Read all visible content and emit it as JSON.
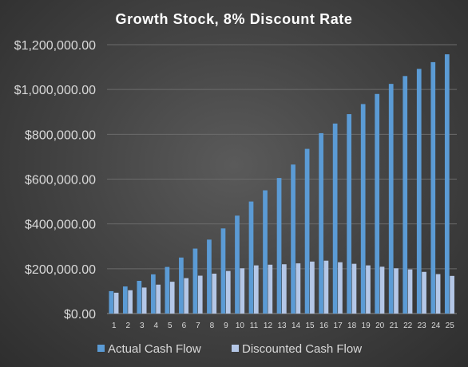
{
  "chart_data": {
    "type": "bar",
    "title": "Growth Stock, 8% Discount Rate",
    "categories": [
      "1",
      "2",
      "3",
      "4",
      "5",
      "6",
      "7",
      "8",
      "9",
      "10",
      "11",
      "12",
      "13",
      "14",
      "15",
      "16",
      "17",
      "18",
      "19",
      "20",
      "21",
      "22",
      "23",
      "24",
      "25"
    ],
    "series": [
      {
        "name": "Actual Cash Flow",
        "color": "#5b9bd5",
        "values": [
          100000,
          121000,
          146000,
          175000,
          208000,
          250000,
          290000,
          330000,
          380000,
          437000,
          500000,
          550000,
          605000,
          665000,
          735000,
          805000,
          848000,
          890000,
          935000,
          980000,
          1025000,
          1060000,
          1092000,
          1122000,
          1157000
        ]
      },
      {
        "name": "Discounted Cash Flow",
        "color": "#b4c7e7",
        "values": [
          93000,
          104000,
          116000,
          129000,
          142000,
          158000,
          169000,
          178000,
          190000,
          202000,
          215000,
          218000,
          220000,
          224000,
          232000,
          236000,
          229000,
          222000,
          215000,
          209000,
          202000,
          197000,
          186000,
          176000,
          168000
        ]
      }
    ],
    "yticks": [
      "$0.00",
      "$200,000.00",
      "$400,000.00",
      "$600,000.00",
      "$800,000.00",
      "$1,000,000.00",
      "$1,200,000.00"
    ],
    "ylim": [
      0,
      1200000
    ],
    "grid": true,
    "legend_position": "bottom"
  }
}
